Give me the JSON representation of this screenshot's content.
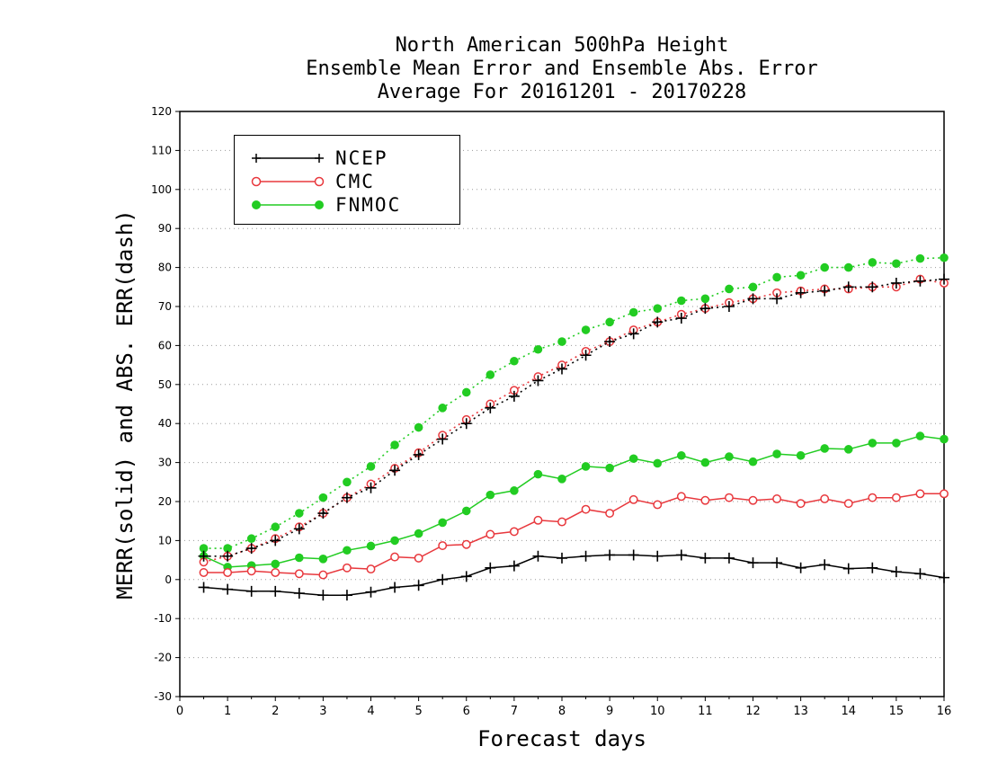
{
  "chart_data": {
    "type": "line",
    "title": [
      "North American 500hPa Height",
      "Ensemble Mean Error and Ensemble Abs. Error",
      "Average For 20161201 - 20170228"
    ],
    "xlabel": "Forecast days",
    "ylabel": "MERR(solid) and ABS. ERR(dash)",
    "xlim": [
      0,
      16
    ],
    "ylim": [
      -30,
      120
    ],
    "xticks": [
      "0",
      "1",
      "2",
      "3",
      "4",
      "5",
      "6",
      "7",
      "8",
      "9",
      "10",
      "11",
      "12",
      "13",
      "14",
      "15",
      "16"
    ],
    "yticks": [
      "-30",
      "-20",
      "-10",
      "0",
      "10",
      "20",
      "30",
      "40",
      "50",
      "60",
      "70",
      "80",
      "90",
      "100",
      "110",
      "120"
    ],
    "grid": "horizontal dotted",
    "legend_position": "top-left",
    "x": [
      0.5,
      1,
      1.5,
      2,
      2.5,
      3,
      3.5,
      4,
      4.5,
      5,
      5.5,
      6,
      6.5,
      7,
      7.5,
      8,
      8.5,
      9,
      9.5,
      10,
      10.5,
      11,
      11.5,
      12,
      12.5,
      13,
      13.5,
      14,
      14.5,
      15,
      15.5,
      16
    ],
    "series": [
      {
        "name": "NCEP",
        "color": "#000000",
        "marker": "plus",
        "merr_solid": [
          -2,
          -2.5,
          -3,
          -3,
          -3.5,
          -4,
          -4,
          -3.2,
          -2,
          -1.5,
          0,
          0.8,
          3,
          3.5,
          6,
          5.5,
          6,
          6.3,
          6.3,
          6,
          6.3,
          5.5,
          5.5,
          4.3,
          4.3,
          3,
          3.8,
          2.8,
          3,
          2,
          1.5,
          0.5
        ],
        "abs_err_dash": [
          6,
          6,
          8,
          10,
          13,
          17,
          21,
          23.5,
          28,
          32,
          36,
          40,
          44,
          47,
          51,
          54,
          57.5,
          61,
          63,
          66,
          67,
          69.5,
          70,
          72,
          72,
          73.5,
          74,
          75,
          75,
          76,
          76.5,
          77
        ]
      },
      {
        "name": "CMC",
        "color": "#e8383d",
        "marker": "open-circle",
        "merr_solid": [
          1.8,
          1.8,
          2.2,
          1.8,
          1.5,
          1.2,
          3,
          2.7,
          5.8,
          5.5,
          8.7,
          9,
          11.6,
          12.3,
          15.2,
          14.8,
          18,
          17,
          20.5,
          19.2,
          21.3,
          20.3,
          21,
          20.3,
          20.7,
          19.5,
          20.7,
          19.5,
          21,
          21,
          22,
          22
        ],
        "abs_err_dash": [
          4.5,
          6,
          8,
          10.5,
          13.5,
          17,
          21,
          24.5,
          28.5,
          32.5,
          37,
          41,
          45,
          48.5,
          52,
          55,
          58.5,
          61,
          64,
          66,
          68,
          69.5,
          71,
          72,
          73.5,
          74,
          74.5,
          74.5,
          75,
          75,
          77,
          76
        ]
      },
      {
        "name": "FNMOC",
        "color": "#22cc22",
        "marker": "filled-circle",
        "merr_solid": [
          6,
          3.2,
          3.6,
          4,
          5.6,
          5.3,
          7.5,
          8.6,
          10,
          11.8,
          14.6,
          17.6,
          21.7,
          22.8,
          27,
          25.8,
          29,
          28.6,
          31,
          29.8,
          31.8,
          30,
          31.5,
          30.2,
          32.2,
          31.8,
          33.6,
          33.4,
          35,
          35,
          36.8,
          36
        ],
        "abs_err_dash": [
          8,
          8,
          10.5,
          13.5,
          17,
          21,
          25,
          29,
          34.5,
          39,
          44,
          48,
          52.5,
          56,
          59,
          61,
          64,
          66,
          68.5,
          69.5,
          71.5,
          72,
          74.5,
          75,
          77.5,
          78,
          80,
          80,
          81.3,
          81,
          82.3,
          82.5
        ]
      }
    ]
  }
}
